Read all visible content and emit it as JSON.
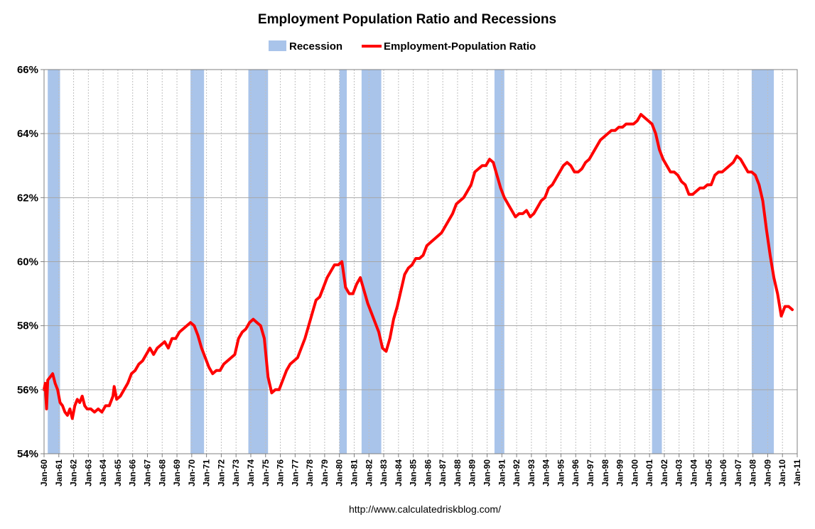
{
  "chart_data": {
    "type": "line",
    "title": "Employment Population Ratio and Recessions",
    "source_text": "http://www.calculatedriskblog.com/",
    "colors": {
      "recession": "#a9c4ea",
      "line": "#ff0000",
      "grid": "#a6a6a6"
    },
    "legend": {
      "placement": "top-center",
      "entries": [
        "Recession",
        "Employment-Population Ratio"
      ]
    },
    "y_axis": {
      "ylim": [
        54,
        66
      ],
      "ticks": [
        54,
        56,
        58,
        60,
        62,
        64,
        66
      ],
      "tick_labels": [
        "54%",
        "56%",
        "58%",
        "60%",
        "62%",
        "64%",
        "66%"
      ],
      "grid": true
    },
    "x_axis": {
      "xlim": [
        "1960-01",
        "2011-01"
      ],
      "tick_labels": [
        "Jan-60",
        "Jan-61",
        "Jan-62",
        "Jan-63",
        "Jan-64",
        "Jan-65",
        "Jan-66",
        "Jan-67",
        "Jan-68",
        "Jan-69",
        "Jan-70",
        "Jan-71",
        "Jan-72",
        "Jan-73",
        "Jan-74",
        "Jan-75",
        "Jan-76",
        "Jan-77",
        "Jan-78",
        "Jan-79",
        "Jan-80",
        "Jan-81",
        "Jan-82",
        "Jan-83",
        "Jan-84",
        "Jan-85",
        "Jan-86",
        "Jan-87",
        "Jan-88",
        "Jan-89",
        "Jan-90",
        "Jan-91",
        "Jan-92",
        "Jan-93",
        "Jan-94",
        "Jan-95",
        "Jan-96",
        "Jan-97",
        "Jan-98",
        "Jan-99",
        "Jan-00",
        "Jan-01",
        "Jan-02",
        "Jan-03",
        "Jan-04",
        "Jan-05",
        "Jan-06",
        "Jan-07",
        "Jan-08",
        "Jan-09",
        "Jan-10",
        "Jan-11"
      ],
      "grid": true
    },
    "recessions": [
      {
        "start": "1960-04",
        "end": "1961-02"
      },
      {
        "start": "1969-12",
        "end": "1970-11"
      },
      {
        "start": "1973-11",
        "end": "1975-03"
      },
      {
        "start": "1980-01",
        "end": "1980-07"
      },
      {
        "start": "1981-07",
        "end": "1982-11"
      },
      {
        "start": "1990-07",
        "end": "1991-03"
      },
      {
        "start": "2001-03",
        "end": "2001-11"
      },
      {
        "start": "2007-12",
        "end": "2009-06"
      }
    ],
    "series": [
      {
        "name": "Employment-Population Ratio",
        "points": [
          [
            "1960-01",
            56.0
          ],
          [
            "1960-02",
            56.2
          ],
          [
            "1960-03",
            55.4
          ],
          [
            "1960-04",
            56.3
          ],
          [
            "1960-06",
            56.4
          ],
          [
            "1960-08",
            56.5
          ],
          [
            "1960-10",
            56.2
          ],
          [
            "1960-12",
            56.0
          ],
          [
            "1961-02",
            55.6
          ],
          [
            "1961-04",
            55.5
          ],
          [
            "1961-06",
            55.3
          ],
          [
            "1961-08",
            55.2
          ],
          [
            "1961-10",
            55.4
          ],
          [
            "1961-12",
            55.1
          ],
          [
            "1962-02",
            55.5
          ],
          [
            "1962-04",
            55.7
          ],
          [
            "1962-06",
            55.6
          ],
          [
            "1962-08",
            55.8
          ],
          [
            "1962-10",
            55.5
          ],
          [
            "1962-12",
            55.4
          ],
          [
            "1963-03",
            55.4
          ],
          [
            "1963-06",
            55.3
          ],
          [
            "1963-09",
            55.4
          ],
          [
            "1963-12",
            55.3
          ],
          [
            "1964-03",
            55.5
          ],
          [
            "1964-06",
            55.5
          ],
          [
            "1964-09",
            55.8
          ],
          [
            "1964-10",
            56.1
          ],
          [
            "1964-12",
            55.7
          ],
          [
            "1965-03",
            55.8
          ],
          [
            "1965-06",
            56.0
          ],
          [
            "1965-09",
            56.2
          ],
          [
            "1965-12",
            56.5
          ],
          [
            "1966-03",
            56.6
          ],
          [
            "1966-06",
            56.8
          ],
          [
            "1966-09",
            56.9
          ],
          [
            "1966-12",
            57.1
          ],
          [
            "1967-03",
            57.3
          ],
          [
            "1967-06",
            57.1
          ],
          [
            "1967-09",
            57.3
          ],
          [
            "1967-12",
            57.4
          ],
          [
            "1968-03",
            57.5
          ],
          [
            "1968-06",
            57.3
          ],
          [
            "1968-09",
            57.6
          ],
          [
            "1968-12",
            57.6
          ],
          [
            "1969-03",
            57.8
          ],
          [
            "1969-06",
            57.9
          ],
          [
            "1969-09",
            58.0
          ],
          [
            "1969-12",
            58.1
          ],
          [
            "1970-03",
            58.0
          ],
          [
            "1970-06",
            57.7
          ],
          [
            "1970-09",
            57.3
          ],
          [
            "1970-12",
            57.0
          ],
          [
            "1971-03",
            56.7
          ],
          [
            "1971-06",
            56.5
          ],
          [
            "1971-09",
            56.6
          ],
          [
            "1971-12",
            56.6
          ],
          [
            "1972-03",
            56.8
          ],
          [
            "1972-06",
            56.9
          ],
          [
            "1972-09",
            57.0
          ],
          [
            "1972-12",
            57.1
          ],
          [
            "1973-03",
            57.6
          ],
          [
            "1973-06",
            57.8
          ],
          [
            "1973-09",
            57.9
          ],
          [
            "1973-12",
            58.1
          ],
          [
            "1974-03",
            58.2
          ],
          [
            "1974-06",
            58.1
          ],
          [
            "1974-09",
            58.0
          ],
          [
            "1974-12",
            57.6
          ],
          [
            "1975-03",
            56.4
          ],
          [
            "1975-06",
            55.9
          ],
          [
            "1975-09",
            56.0
          ],
          [
            "1975-12",
            56.0
          ],
          [
            "1976-03",
            56.3
          ],
          [
            "1976-06",
            56.6
          ],
          [
            "1976-09",
            56.8
          ],
          [
            "1976-12",
            56.9
          ],
          [
            "1977-03",
            57.0
          ],
          [
            "1977-06",
            57.3
          ],
          [
            "1977-09",
            57.6
          ],
          [
            "1977-12",
            58.0
          ],
          [
            "1978-03",
            58.4
          ],
          [
            "1978-06",
            58.8
          ],
          [
            "1978-09",
            58.9
          ],
          [
            "1978-12",
            59.2
          ],
          [
            "1979-03",
            59.5
          ],
          [
            "1979-06",
            59.7
          ],
          [
            "1979-09",
            59.9
          ],
          [
            "1979-12",
            59.9
          ],
          [
            "1980-03",
            60.0
          ],
          [
            "1980-06",
            59.2
          ],
          [
            "1980-09",
            59.0
          ],
          [
            "1980-12",
            59.0
          ],
          [
            "1981-03",
            59.3
          ],
          [
            "1981-06",
            59.5
          ],
          [
            "1981-09",
            59.1
          ],
          [
            "1981-12",
            58.7
          ],
          [
            "1982-03",
            58.4
          ],
          [
            "1982-06",
            58.1
          ],
          [
            "1982-09",
            57.8
          ],
          [
            "1982-12",
            57.3
          ],
          [
            "1983-03",
            57.2
          ],
          [
            "1983-06",
            57.6
          ],
          [
            "1983-09",
            58.2
          ],
          [
            "1983-12",
            58.6
          ],
          [
            "1984-03",
            59.1
          ],
          [
            "1984-06",
            59.6
          ],
          [
            "1984-09",
            59.8
          ],
          [
            "1984-12",
            59.9
          ],
          [
            "1985-03",
            60.1
          ],
          [
            "1985-06",
            60.1
          ],
          [
            "1985-09",
            60.2
          ],
          [
            "1985-12",
            60.5
          ],
          [
            "1986-03",
            60.6
          ],
          [
            "1986-06",
            60.7
          ],
          [
            "1986-09",
            60.8
          ],
          [
            "1986-12",
            60.9
          ],
          [
            "1987-03",
            61.1
          ],
          [
            "1987-06",
            61.3
          ],
          [
            "1987-09",
            61.5
          ],
          [
            "1987-12",
            61.8
          ],
          [
            "1988-03",
            61.9
          ],
          [
            "1988-06",
            62.0
          ],
          [
            "1988-09",
            62.2
          ],
          [
            "1988-12",
            62.4
          ],
          [
            "1989-03",
            62.8
          ],
          [
            "1989-06",
            62.9
          ],
          [
            "1989-09",
            63.0
          ],
          [
            "1989-12",
            63.0
          ],
          [
            "1990-03",
            63.2
          ],
          [
            "1990-06",
            63.1
          ],
          [
            "1990-09",
            62.7
          ],
          [
            "1990-12",
            62.3
          ],
          [
            "1991-03",
            62.0
          ],
          [
            "1991-06",
            61.8
          ],
          [
            "1991-09",
            61.6
          ],
          [
            "1991-12",
            61.4
          ],
          [
            "1992-03",
            61.5
          ],
          [
            "1992-06",
            61.5
          ],
          [
            "1992-09",
            61.6
          ],
          [
            "1992-12",
            61.4
          ],
          [
            "1993-03",
            61.5
          ],
          [
            "1993-06",
            61.7
          ],
          [
            "1993-09",
            61.9
          ],
          [
            "1993-12",
            62.0
          ],
          [
            "1994-03",
            62.3
          ],
          [
            "1994-06",
            62.4
          ],
          [
            "1994-09",
            62.6
          ],
          [
            "1994-12",
            62.8
          ],
          [
            "1995-03",
            63.0
          ],
          [
            "1995-06",
            63.1
          ],
          [
            "1995-09",
            63.0
          ],
          [
            "1995-12",
            62.8
          ],
          [
            "1996-03",
            62.8
          ],
          [
            "1996-06",
            62.9
          ],
          [
            "1996-09",
            63.1
          ],
          [
            "1996-12",
            63.2
          ],
          [
            "1997-03",
            63.4
          ],
          [
            "1997-06",
            63.6
          ],
          [
            "1997-09",
            63.8
          ],
          [
            "1997-12",
            63.9
          ],
          [
            "1998-03",
            64.0
          ],
          [
            "1998-06",
            64.1
          ],
          [
            "1998-09",
            64.1
          ],
          [
            "1998-12",
            64.2
          ],
          [
            "1999-03",
            64.2
          ],
          [
            "1999-06",
            64.3
          ],
          [
            "1999-09",
            64.3
          ],
          [
            "1999-12",
            64.3
          ],
          [
            "2000-03",
            64.4
          ],
          [
            "2000-06",
            64.6
          ],
          [
            "2000-09",
            64.5
          ],
          [
            "2000-12",
            64.4
          ],
          [
            "2001-03",
            64.3
          ],
          [
            "2001-06",
            64.0
          ],
          [
            "2001-09",
            63.5
          ],
          [
            "2001-12",
            63.2
          ],
          [
            "2002-03",
            63.0
          ],
          [
            "2002-06",
            62.8
          ],
          [
            "2002-09",
            62.8
          ],
          [
            "2002-12",
            62.7
          ],
          [
            "2003-03",
            62.5
          ],
          [
            "2003-06",
            62.4
          ],
          [
            "2003-09",
            62.1
          ],
          [
            "2003-12",
            62.1
          ],
          [
            "2004-03",
            62.2
          ],
          [
            "2004-06",
            62.3
          ],
          [
            "2004-09",
            62.3
          ],
          [
            "2004-12",
            62.4
          ],
          [
            "2005-03",
            62.4
          ],
          [
            "2005-06",
            62.7
          ],
          [
            "2005-09",
            62.8
          ],
          [
            "2005-12",
            62.8
          ],
          [
            "2006-03",
            62.9
          ],
          [
            "2006-06",
            63.0
          ],
          [
            "2006-09",
            63.1
          ],
          [
            "2006-12",
            63.3
          ],
          [
            "2007-03",
            63.2
          ],
          [
            "2007-06",
            63.0
          ],
          [
            "2007-09",
            62.8
          ],
          [
            "2007-12",
            62.8
          ],
          [
            "2008-03",
            62.7
          ],
          [
            "2008-06",
            62.4
          ],
          [
            "2008-09",
            61.9
          ],
          [
            "2008-12",
            61.0
          ],
          [
            "2009-03",
            60.2
          ],
          [
            "2009-06",
            59.5
          ],
          [
            "2009-09",
            59.0
          ],
          [
            "2009-12",
            58.3
          ],
          [
            "2010-03",
            58.6
          ],
          [
            "2010-06",
            58.6
          ],
          [
            "2010-09",
            58.5
          ]
        ]
      }
    ]
  }
}
